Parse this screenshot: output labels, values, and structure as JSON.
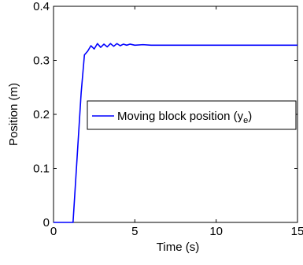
{
  "chart_data": {
    "type": "line",
    "title": "",
    "xlabel": "Time (s)",
    "ylabel": "Position (m)",
    "xlim": [
      0,
      15
    ],
    "ylim": [
      0,
      0.4
    ],
    "x_ticks": [
      0,
      5,
      10,
      15
    ],
    "y_ticks": [
      0,
      0.1,
      0.2,
      0.3,
      0.4
    ],
    "x_tick_labels": [
      "0",
      "5",
      "10",
      "15"
    ],
    "y_tick_labels": [
      "0",
      "0.1",
      "0.2",
      "0.3",
      "0.4"
    ],
    "grid": false,
    "legend_position": "center-right",
    "legend": {
      "label_main": "Moving block position (y",
      "label_sub": "e",
      "label_close": ")"
    },
    "series": [
      {
        "name": "Moving block position (y_e)",
        "color": "#0000ff",
        "x": [
          0,
          1.2,
          1.45,
          1.7,
          1.9,
          2.1,
          2.3,
          2.5,
          2.7,
          2.9,
          3.1,
          3.3,
          3.5,
          3.7,
          3.9,
          4.1,
          4.3,
          4.5,
          4.7,
          5.0,
          5.5,
          6.0,
          7.0,
          8.0,
          10.0,
          12.0,
          15.0
        ],
        "y": [
          0,
          0,
          0.12,
          0.24,
          0.31,
          0.317,
          0.327,
          0.321,
          0.331,
          0.324,
          0.33,
          0.325,
          0.331,
          0.326,
          0.331,
          0.327,
          0.33,
          0.328,
          0.33,
          0.328,
          0.329,
          0.328,
          0.328,
          0.328,
          0.328,
          0.328,
          0.328
        ]
      }
    ]
  }
}
